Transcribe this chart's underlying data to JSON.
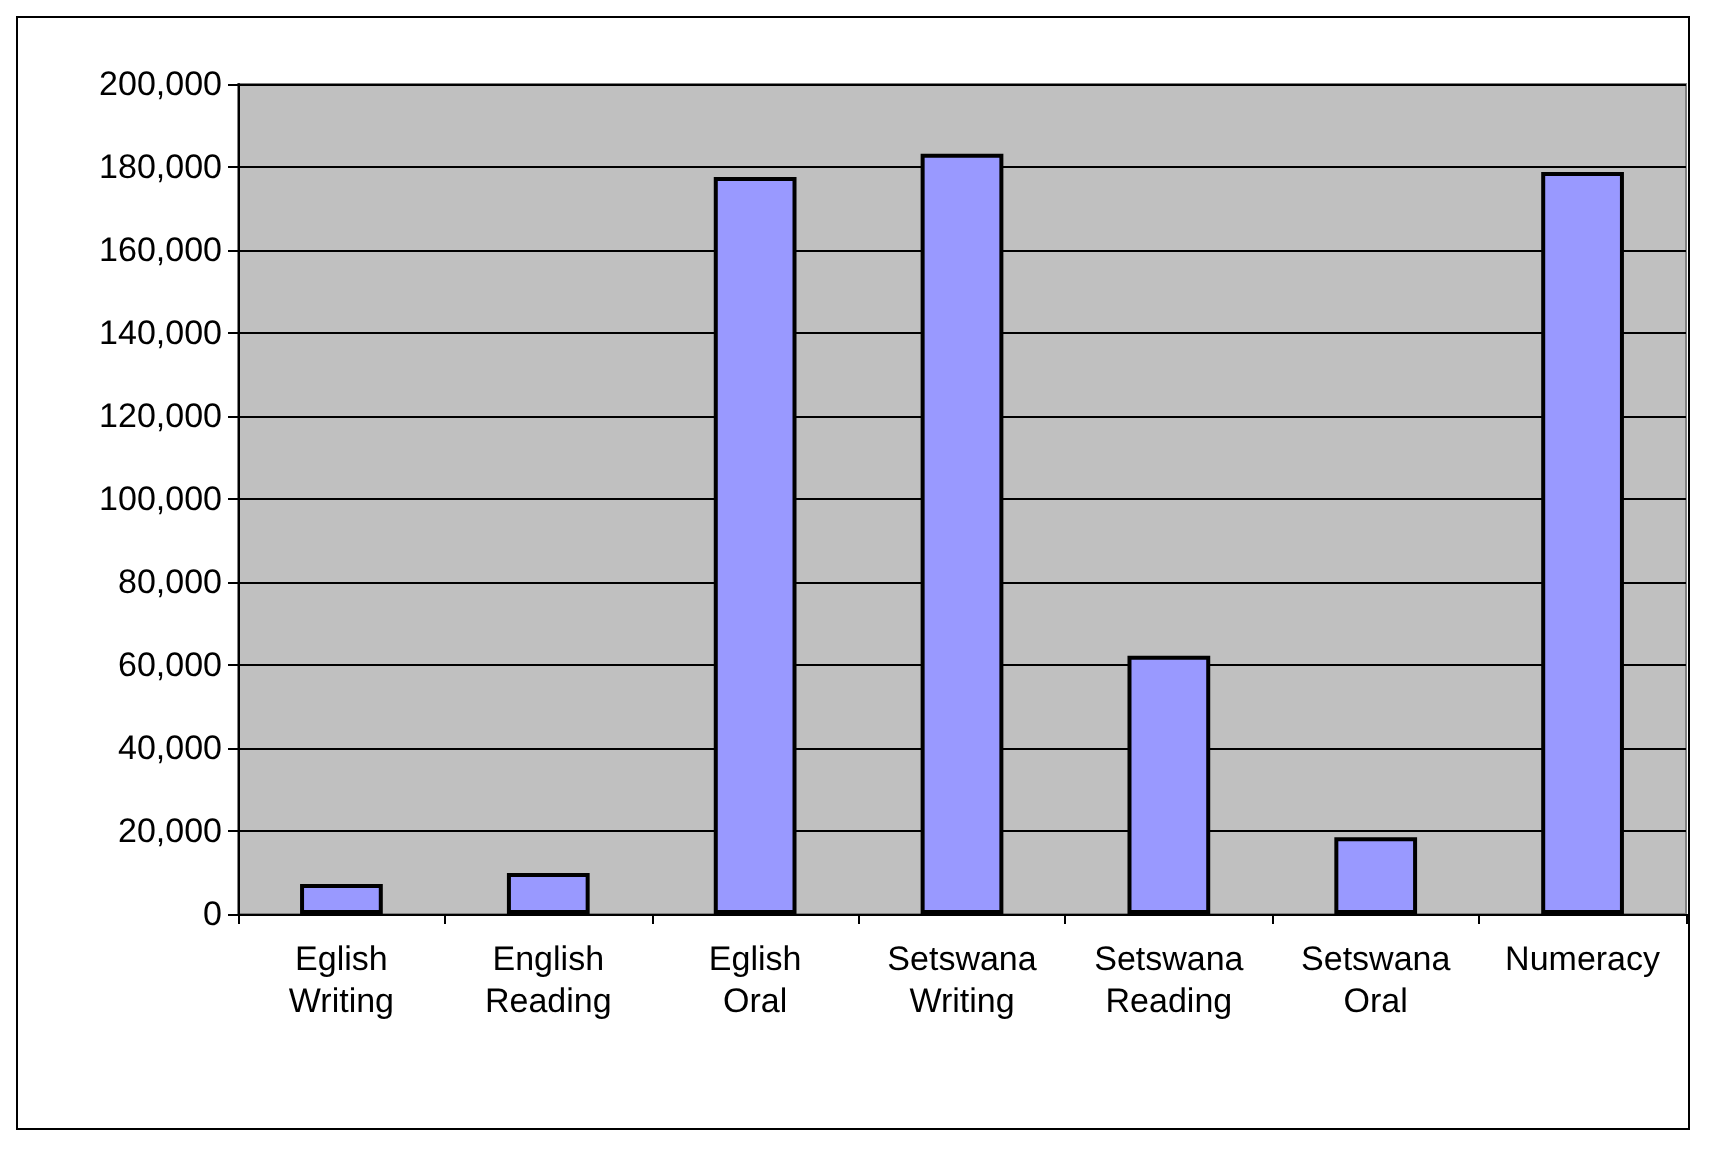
{
  "chart_data": {
    "type": "bar",
    "categories": [
      "Eglish Writing",
      "English Reading",
      "Eglish Oral",
      "Setswana Writing",
      "Setswana Reading",
      "Setswana Oral",
      "Numeracy"
    ],
    "values": [
      7200,
      9900,
      177600,
      183200,
      62200,
      18500,
      178800
    ],
    "color": "#9999ff",
    "ylim": [
      0,
      200000
    ],
    "yticks": [
      0,
      {
        "value": 20000,
        "label": "20,000"
      },
      {
        "value": 40000,
        "label": "40,000"
      },
      {
        "value": 60000,
        "label": "60,000"
      },
      {
        "value": 80000,
        "label": "80,000"
      },
      {
        "value": 100000,
        "label": "100,000"
      },
      {
        "value": 120000,
        "label": "120,000"
      },
      {
        "value": 140000,
        "label": "140,000"
      },
      {
        "value": 160000,
        "label": "160,000"
      },
      {
        "value": 180000,
        "label": "180,000"
      },
      {
        "value": 200000,
        "label": "200,000"
      }
    ],
    "grid": "y"
  }
}
